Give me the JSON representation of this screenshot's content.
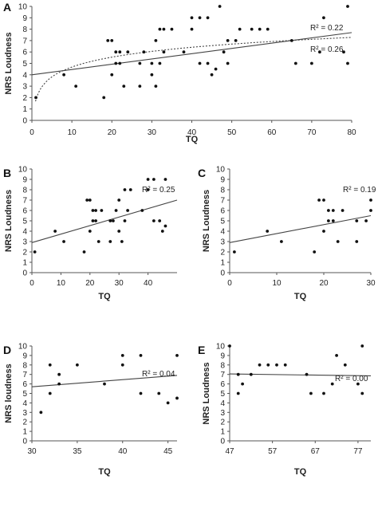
{
  "chart_data": [
    {
      "panel": "A",
      "type": "scatter",
      "xlabel": "TQ",
      "ylabel": "NRS Loudness",
      "xlim": [
        0,
        80
      ],
      "ylim": [
        0,
        10
      ],
      "xticks": [
        0,
        10,
        20,
        30,
        40,
        50,
        60,
        70,
        80
      ],
      "yticks": [
        0,
        1,
        2,
        3,
        4,
        5,
        6,
        7,
        8,
        9,
        10
      ],
      "points": [
        [
          1,
          2
        ],
        [
          8,
          4
        ],
        [
          11,
          3
        ],
        [
          18,
          2
        ],
        [
          19,
          7
        ],
        [
          20,
          7
        ],
        [
          20,
          4
        ],
        [
          21,
          5
        ],
        [
          21,
          6
        ],
        [
          22,
          6
        ],
        [
          22,
          5
        ],
        [
          23,
          3
        ],
        [
          24,
          6
        ],
        [
          27,
          5
        ],
        [
          27,
          3
        ],
        [
          28,
          6
        ],
        [
          30,
          5
        ],
        [
          30,
          4
        ],
        [
          31,
          3
        ],
        [
          31,
          7
        ],
        [
          32,
          8
        ],
        [
          32,
          5
        ],
        [
          33,
          8
        ],
        [
          33,
          6
        ],
        [
          35,
          8
        ],
        [
          38,
          6
        ],
        [
          40,
          9
        ],
        [
          40,
          8
        ],
        [
          42,
          9
        ],
        [
          42,
          5
        ],
        [
          44,
          5
        ],
        [
          44,
          9
        ],
        [
          45,
          4
        ],
        [
          46,
          4.5
        ],
        [
          47,
          10
        ],
        [
          48,
          6
        ],
        [
          49,
          5
        ],
        [
          49,
          7
        ],
        [
          51,
          7
        ],
        [
          52,
          8
        ],
        [
          55,
          8
        ],
        [
          57,
          8
        ],
        [
          59,
          8
        ],
        [
          65,
          7
        ],
        [
          66,
          5
        ],
        [
          70,
          5
        ],
        [
          72,
          6
        ],
        [
          73,
          9
        ],
        [
          78,
          6
        ],
        [
          79,
          5
        ],
        [
          79,
          10
        ]
      ],
      "fits": [
        {
          "kind": "linear",
          "style": "solid",
          "r2_label": "R² = 0.22",
          "y_at_xmin": 4.0,
          "y_at_xmax": 7.7
        },
        {
          "kind": "log",
          "style": "dotted",
          "r2_label": "R² = 0.26",
          "a": 1.8,
          "b": 1.25
        }
      ]
    },
    {
      "panel": "B",
      "type": "scatter",
      "xlabel": "TQ",
      "ylabel": "NRS Loudness",
      "xlim": [
        0,
        50
      ],
      "ylim": [
        0,
        10
      ],
      "xticks": [
        0,
        10,
        20,
        30,
        40
      ],
      "yticks": [
        0,
        1,
        2,
        3,
        4,
        5,
        6,
        7,
        8,
        9,
        10
      ],
      "points": [
        [
          1,
          2
        ],
        [
          8,
          4
        ],
        [
          11,
          3
        ],
        [
          18,
          2
        ],
        [
          19,
          7
        ],
        [
          20,
          7
        ],
        [
          20,
          4
        ],
        [
          21,
          5
        ],
        [
          21,
          6
        ],
        [
          22,
          6
        ],
        [
          22,
          5
        ],
        [
          23,
          3
        ],
        [
          24,
          6
        ],
        [
          27,
          5
        ],
        [
          27,
          3
        ],
        [
          28,
          5
        ],
        [
          29,
          6
        ],
        [
          30,
          7
        ],
        [
          30,
          4
        ],
        [
          31,
          3
        ],
        [
          32,
          5
        ],
        [
          32,
          8
        ],
        [
          33,
          6
        ],
        [
          34,
          8
        ],
        [
          38,
          6
        ],
        [
          40,
          9
        ],
        [
          40,
          8
        ],
        [
          42,
          9
        ],
        [
          42,
          5
        ],
        [
          44,
          5
        ],
        [
          45,
          4
        ],
        [
          46,
          9
        ],
        [
          46,
          4.5
        ]
      ],
      "fits": [
        {
          "kind": "linear",
          "style": "solid",
          "r2_label": "R² = 0.25",
          "y_at_xmin": 2.9,
          "y_at_xmax": 7.0
        }
      ]
    },
    {
      "panel": "C",
      "type": "scatter",
      "xlabel": "TQ",
      "ylabel": "NRS Loudness",
      "xlim": [
        0,
        30
      ],
      "ylim": [
        0,
        10
      ],
      "xticks": [
        0,
        10,
        20,
        30
      ],
      "yticks": [
        0,
        1,
        2,
        3,
        4,
        5,
        6,
        7,
        8,
        9,
        10
      ],
      "points": [
        [
          1,
          2
        ],
        [
          8,
          4
        ],
        [
          11,
          3
        ],
        [
          18,
          2
        ],
        [
          19,
          7
        ],
        [
          20,
          7
        ],
        [
          20,
          4
        ],
        [
          21,
          5
        ],
        [
          21,
          6
        ],
        [
          22,
          6
        ],
        [
          22,
          5
        ],
        [
          23,
          3
        ],
        [
          24,
          6
        ],
        [
          27,
          5
        ],
        [
          27,
          3
        ],
        [
          29,
          5
        ],
        [
          30,
          6
        ],
        [
          30,
          7
        ]
      ],
      "fits": [
        {
          "kind": "linear",
          "style": "solid",
          "r2_label": "R² = 0.19",
          "y_at_xmin": 2.9,
          "y_at_xmax": 5.5
        }
      ]
    },
    {
      "panel": "D",
      "type": "scatter",
      "xlabel": "TQ",
      "ylabel": "NRS loudness",
      "xlim": [
        30,
        46
      ],
      "ylim": [
        0,
        10
      ],
      "xticks": [
        30,
        35,
        40,
        45
      ],
      "yticks": [
        0,
        1,
        2,
        3,
        4,
        5,
        6,
        7,
        8,
        9,
        10
      ],
      "points": [
        [
          31,
          3
        ],
        [
          32,
          8
        ],
        [
          32,
          5
        ],
        [
          33,
          7
        ],
        [
          33,
          6
        ],
        [
          35,
          8
        ],
        [
          38,
          6
        ],
        [
          40,
          9
        ],
        [
          40,
          8
        ],
        [
          42,
          9
        ],
        [
          42,
          5
        ],
        [
          44,
          5
        ],
        [
          45,
          4
        ],
        [
          46,
          9
        ],
        [
          46,
          4.5
        ]
      ],
      "fits": [
        {
          "kind": "linear",
          "style": "solid",
          "r2_label": "R² = 0.04",
          "y_at_xmin": 5.7,
          "y_at_xmax": 6.9
        }
      ]
    },
    {
      "panel": "E",
      "type": "scatter",
      "xlabel": "TQ",
      "ylabel": "NRS Loudness",
      "xlim": [
        47,
        80
      ],
      "ylim": [
        0,
        10
      ],
      "xticks": [
        47,
        57,
        67,
        77
      ],
      "yticks": [
        0,
        1,
        2,
        3,
        4,
        5,
        6,
        7,
        8,
        9,
        10
      ],
      "points": [
        [
          47,
          10
        ],
        [
          49,
          7
        ],
        [
          49,
          5
        ],
        [
          50,
          6
        ],
        [
          52,
          7
        ],
        [
          54,
          8
        ],
        [
          56,
          8
        ],
        [
          58,
          8
        ],
        [
          60,
          8
        ],
        [
          65,
          7
        ],
        [
          66,
          5
        ],
        [
          69,
          5
        ],
        [
          71,
          6
        ],
        [
          72,
          9
        ],
        [
          74,
          8
        ],
        [
          77,
          6
        ],
        [
          78,
          5
        ],
        [
          78,
          10
        ]
      ],
      "fits": [
        {
          "kind": "linear",
          "style": "solid",
          "r2_label": "R² = 0.00",
          "y_at_xmin": 7.05,
          "y_at_xmax": 6.85
        }
      ]
    }
  ]
}
